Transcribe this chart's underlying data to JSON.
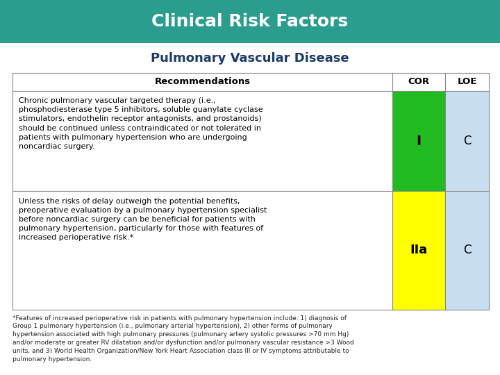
{
  "title": "Clinical Risk Factors",
  "title_bg": "#2a9d8f",
  "title_color": "#ffffff",
  "subtitle": "Pulmonary Vascular Disease",
  "subtitle_color": "#1a3a6b",
  "header_text": "Recommendations",
  "cor_header": "COR",
  "loe_header": "LOE",
  "rows": [
    {
      "recommendation": "Chronic pulmonary vascular targeted therapy (i.e.,\nphosphodiesterase type 5 inhibitors, soluble guanylate cyclase\nstimulators, endothelin receptor antagonists, and prostanoids)\nshould be continued unless contraindicated or not tolerated in\npatients with pulmonary hypertension who are undergoing\nnoncardiac surgery.",
      "cor": "I",
      "cor_color": "#22bb22",
      "loe": "C",
      "loe_color": "#c8ddf0"
    },
    {
      "recommendation": "Unless the risks of delay outweigh the potential benefits,\npreoperative evaluation by a pulmonary hypertension specialist\nbefore noncardiac surgery can be beneficial for patients with\npulmonary hypertension, particularly for those with features of\nincreased perioperative risk.*",
      "cor": "IIa",
      "cor_color": "#ffff00",
      "loe": "C",
      "loe_color": "#c8ddf0"
    }
  ],
  "footnote": "*Features of increased perioperative risk in patients with pulmonary hypertension include: 1) diagnosis of\nGroup 1 pulmonary hypertension (i.e., pulmonary arterial hypertension), 2) other forms of pulmonary\nhypertension associated with high pulmonary pressures (pulmonary artery systolic pressures >70 mm Hg)\nand/or moderate or greater RV dilatation and/or dysfunction and/or pulmonary vascular resistance >3 Wood\nunits, and 3) World Health Organization/New York Heart Association class III or IV symptoms attributable to\npulmonary hypertension.",
  "bg_color": "#ffffff",
  "border_color": "#888888",
  "title_fontsize": 18,
  "subtitle_fontsize": 13,
  "header_fontsize": 9.5,
  "body_fontsize": 8.0,
  "cor_fontsize_1": 14,
  "cor_fontsize_2": 13,
  "loe_fontsize": 12,
  "footnote_fontsize": 6.5
}
